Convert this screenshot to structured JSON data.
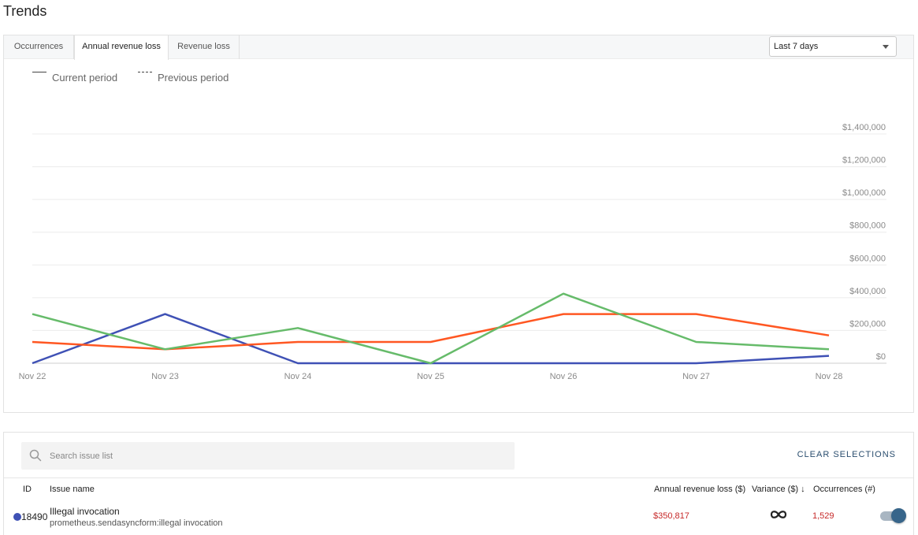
{
  "page": {
    "title": "Trends"
  },
  "tabs": [
    {
      "label": "Occurrences",
      "active": false
    },
    {
      "label": "Annual revenue loss",
      "active": true
    },
    {
      "label": "Revenue loss",
      "active": false
    }
  ],
  "period_select": {
    "value": "Last 7 days"
  },
  "legend": {
    "current": "Current period",
    "previous": "Previous period"
  },
  "chart_data": {
    "type": "line",
    "title": "",
    "xlabel": "",
    "ylabel": "",
    "x": [
      "Nov 22",
      "Nov 23",
      "Nov 24",
      "Nov 25",
      "Nov 26",
      "Nov 27",
      "Nov 28"
    ],
    "y_ticks": [
      "$0",
      "$200,000",
      "$400,000",
      "$600,000",
      "$800,000",
      "$1,000,000",
      "$1,200,000",
      "$1,400,000"
    ],
    "ylim": [
      0,
      1400000
    ],
    "grid": true,
    "y_axis_position": "right",
    "series": [
      {
        "color": "#3f51b5",
        "values": [
          0,
          300000,
          0,
          0,
          0,
          0,
          45000
        ]
      },
      {
        "color": "#ff5722",
        "values": [
          130000,
          85000,
          130000,
          130000,
          300000,
          300000,
          170000
        ]
      },
      {
        "color": "#66bb6a",
        "values": [
          300000,
          85000,
          215000,
          0,
          425000,
          130000,
          85000
        ]
      }
    ]
  },
  "issue_list": {
    "search_placeholder": "Search issue list",
    "clear_label": "CLEAR SELECTIONS",
    "columns": {
      "id": "ID",
      "name": "Issue name",
      "arl": "Annual revenue loss ($)",
      "variance": "Variance ($) ↓",
      "occurrences": "Occurrences (#)"
    },
    "rows": [
      {
        "id": "18490",
        "name": "Illegal invocation",
        "subtitle": "prometheus.sendasyncform:illegal invocation",
        "arl": "$350,817",
        "variance_icon": "infinity-icon",
        "occurrences": "1,529",
        "dot_color": "#3f51b5",
        "selected": true
      }
    ]
  }
}
